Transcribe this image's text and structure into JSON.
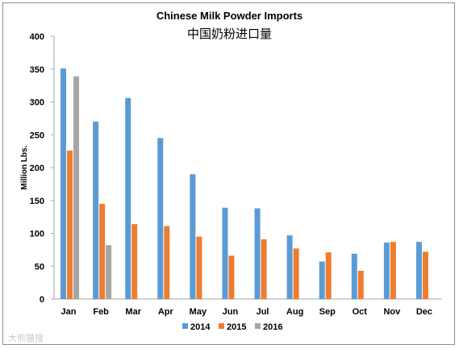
{
  "chart_data": {
    "type": "bar",
    "title": "Chinese Milk Powder Imports",
    "subtitle": "中国奶粉进口量",
    "xlabel": "",
    "ylabel": "Million Lbs.",
    "ylim": [
      0,
      400
    ],
    "yticks": [
      0,
      50,
      100,
      150,
      200,
      250,
      300,
      350,
      400
    ],
    "grid": false,
    "legend_position": "bottom",
    "categories": [
      "Jan",
      "Feb",
      "Mar",
      "Apr",
      "May",
      "Jun",
      "Jul",
      "Aug",
      "Sep",
      "Oct",
      "Nov",
      "Dec"
    ],
    "series": [
      {
        "name": "2014",
        "color": "#5b9bd5",
        "values": [
          351,
          270,
          306,
          245,
          190,
          139,
          138,
          97,
          57,
          69,
          86,
          87
        ]
      },
      {
        "name": "2015",
        "color": "#ed7d31",
        "values": [
          226,
          145,
          114,
          111,
          95,
          66,
          91,
          77,
          71,
          43,
          87,
          72
        ]
      },
      {
        "name": "2016",
        "color": "#a5a5a5",
        "values": [
          339,
          82,
          null,
          null,
          null,
          null,
          null,
          null,
          null,
          null,
          null,
          null
        ]
      }
    ]
  },
  "watermark": {
    "text": "大熊猫搜"
  }
}
